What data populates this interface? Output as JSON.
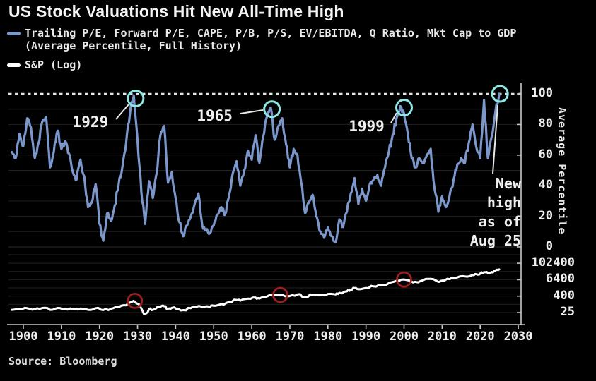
{
  "title": "US Stock Valuations Hit New All-Time High",
  "legend": {
    "series1_line1": "Trailing P/E, Forward P/E, CAPE, P/B, P/S, EV/EBITDA, Q Ratio, Mkt Cap to GDP",
    "series1_line2": "(Average Percentile, Full History)",
    "series2_label": "S&P (Log)"
  },
  "source": "Source: Bloomberg",
  "colors": {
    "background": "#000000",
    "text": "#e9e9e9",
    "valuation_line": "#7b97cc",
    "sp_line": "#ffffff",
    "peak_circle": "#8ee9e6",
    "sp_highlight_circle": "#9b2020",
    "dashed_line": "#e5e5e5",
    "gridline": "#1f1f1f",
    "axis": "#c8c8c8",
    "pointer_line": "#e8e8e8"
  },
  "new_high_note": {
    "line1": "New",
    "line2": "high",
    "line3": "as of",
    "line4": "Aug 25"
  },
  "chart_data": {
    "type": "line",
    "title": "US Stock Valuations Hit New All-Time High",
    "xlabel": "",
    "x_ticks": [
      1900,
      1910,
      1920,
      1930,
      1940,
      1950,
      1960,
      1970,
      1980,
      1990,
      2000,
      2010,
      2020,
      2030
    ],
    "x_range": [
      1897,
      2030
    ],
    "upper_panel": {
      "ylabel": "Average Percentile",
      "y_ticks": [
        100,
        80,
        60,
        40,
        20,
        0
      ],
      "ylim": [
        0,
        100
      ],
      "grid": "horizontal-faint",
      "reference_line": {
        "value": 100,
        "style": "dashed"
      },
      "series_name": "Trailing P/E, Forward P/E, CAPE, P/B, P/S, EV/EBITDA, Q Ratio, Mkt Cap to GDP (Average Percentile, Full History)",
      "points": [
        [
          1897,
          62
        ],
        [
          1898,
          58
        ],
        [
          1899,
          74
        ],
        [
          1900,
          66
        ],
        [
          1901,
          84
        ],
        [
          1902,
          78
        ],
        [
          1903,
          58
        ],
        [
          1904,
          68
        ],
        [
          1905,
          82
        ],
        [
          1906,
          85
        ],
        [
          1907,
          52
        ],
        [
          1908,
          62
        ],
        [
          1909,
          76
        ],
        [
          1910,
          64
        ],
        [
          1911,
          69
        ],
        [
          1912,
          61
        ],
        [
          1913,
          49
        ],
        [
          1914,
          44
        ],
        [
          1915,
          57
        ],
        [
          1916,
          46
        ],
        [
          1917,
          26
        ],
        [
          1918,
          29
        ],
        [
          1919,
          41
        ],
        [
          1920,
          15
        ],
        [
          1921,
          4
        ],
        [
          1922,
          22
        ],
        [
          1923,
          17
        ],
        [
          1924,
          27
        ],
        [
          1925,
          40
        ],
        [
          1926,
          52
        ],
        [
          1927,
          68
        ],
        [
          1928,
          87
        ],
        [
          1929,
          99
        ],
        [
          1930,
          70
        ],
        [
          1931,
          36
        ],
        [
          1932,
          15
        ],
        [
          1933,
          43
        ],
        [
          1934,
          32
        ],
        [
          1935,
          48
        ],
        [
          1936,
          73
        ],
        [
          1937,
          79
        ],
        [
          1938,
          42
        ],
        [
          1939,
          49
        ],
        [
          1940,
          32
        ],
        [
          1941,
          16
        ],
        [
          1942,
          7
        ],
        [
          1943,
          14
        ],
        [
          1944,
          20
        ],
        [
          1945,
          28
        ],
        [
          1946,
          35
        ],
        [
          1947,
          14
        ],
        [
          1948,
          11
        ],
        [
          1949,
          9
        ],
        [
          1950,
          14
        ],
        [
          1951,
          21
        ],
        [
          1952,
          26
        ],
        [
          1953,
          21
        ],
        [
          1954,
          33
        ],
        [
          1955,
          48
        ],
        [
          1956,
          56
        ],
        [
          1957,
          40
        ],
        [
          1958,
          50
        ],
        [
          1959,
          63
        ],
        [
          1960,
          57
        ],
        [
          1961,
          73
        ],
        [
          1962,
          55
        ],
        [
          1963,
          72
        ],
        [
          1964,
          85
        ],
        [
          1965,
          91
        ],
        [
          1966,
          70
        ],
        [
          1967,
          79
        ],
        [
          1968,
          84
        ],
        [
          1969,
          67
        ],
        [
          1970,
          52
        ],
        [
          1971,
          64
        ],
        [
          1972,
          60
        ],
        [
          1973,
          42
        ],
        [
          1974,
          22
        ],
        [
          1975,
          29
        ],
        [
          1976,
          34
        ],
        [
          1977,
          20
        ],
        [
          1978,
          10
        ],
        [
          1979,
          6
        ],
        [
          1980,
          13
        ],
        [
          1981,
          7
        ],
        [
          1982,
          3
        ],
        [
          1983,
          18
        ],
        [
          1984,
          13
        ],
        [
          1985,
          23
        ],
        [
          1986,
          35
        ],
        [
          1987,
          45
        ],
        [
          1988,
          28
        ],
        [
          1989,
          38
        ],
        [
          1990,
          30
        ],
        [
          1991,
          41
        ],
        [
          1992,
          44
        ],
        [
          1993,
          47
        ],
        [
          1994,
          40
        ],
        [
          1995,
          52
        ],
        [
          1996,
          62
        ],
        [
          1997,
          73
        ],
        [
          1998,
          84
        ],
        [
          1999,
          92
        ],
        [
          2000,
          87
        ],
        [
          2001,
          74
        ],
        [
          2002,
          58
        ],
        [
          2003,
          52
        ],
        [
          2004,
          58
        ],
        [
          2005,
          55
        ],
        [
          2006,
          60
        ],
        [
          2007,
          64
        ],
        [
          2008,
          38
        ],
        [
          2009,
          23
        ],
        [
          2010,
          33
        ],
        [
          2011,
          26
        ],
        [
          2012,
          34
        ],
        [
          2013,
          44
        ],
        [
          2014,
          54
        ],
        [
          2015,
          58
        ],
        [
          2016,
          55
        ],
        [
          2017,
          68
        ],
        [
          2018,
          80
        ],
        [
          2019,
          65
        ],
        [
          2020,
          58
        ],
        [
          2021,
          96
        ],
        [
          2022,
          58
        ],
        [
          2023,
          72
        ],
        [
          2024,
          88
        ],
        [
          2025,
          100
        ]
      ],
      "annotations": [
        {
          "label": "1929",
          "year": 1929.5,
          "value": 97,
          "label_offset": [
            -64,
            33
          ],
          "pointer": [
            [
              164,
              169
            ],
            [
              182,
              148
            ]
          ]
        },
        {
          "label": "1965",
          "year": 1965.3,
          "value": 90,
          "label_offset": [
            -81,
            9
          ],
          "pointer": [
            [
              340,
              161
            ],
            [
              372,
              156
            ]
          ]
        },
        {
          "label": "1999",
          "year": 2000.0,
          "value": 91,
          "label_offset": [
            -53,
            26
          ],
          "pointer": [
            [
              553,
              174
            ],
            [
              561,
              160
            ]
          ]
        },
        {
          "label": "New high as of Aug 25",
          "year": 2025.2,
          "value": 100,
          "pointer": [
            [
              704,
              149
            ],
            [
              697,
              246
            ]
          ]
        }
      ]
    },
    "lower_panel": {
      "ylabel": "",
      "scale": "log",
      "y_ticks": [
        102400,
        6400,
        400,
        25
      ],
      "series_name": "S&P (Log)",
      "points": [
        [
          1897,
          40
        ],
        [
          1899,
          46
        ],
        [
          1901,
          52
        ],
        [
          1903,
          44
        ],
        [
          1905,
          54
        ],
        [
          1907,
          40
        ],
        [
          1909,
          54
        ],
        [
          1911,
          48
        ],
        [
          1913,
          44
        ],
        [
          1915,
          50
        ],
        [
          1917,
          40
        ],
        [
          1919,
          52
        ],
        [
          1921,
          38
        ],
        [
          1923,
          48
        ],
        [
          1925,
          62
        ],
        [
          1927,
          85
        ],
        [
          1929,
          180
        ],
        [
          1930,
          110
        ],
        [
          1931,
          50
        ],
        [
          1932,
          19
        ],
        [
          1933,
          45
        ],
        [
          1934,
          40
        ],
        [
          1936,
          66
        ],
        [
          1937,
          72
        ],
        [
          1938,
          48
        ],
        [
          1939,
          55
        ],
        [
          1941,
          42
        ],
        [
          1942,
          38
        ],
        [
          1944,
          52
        ],
        [
          1946,
          75
        ],
        [
          1947,
          62
        ],
        [
          1949,
          63
        ],
        [
          1950,
          78
        ],
        [
          1952,
          105
        ],
        [
          1954,
          145
        ],
        [
          1956,
          210
        ],
        [
          1957,
          185
        ],
        [
          1959,
          260
        ],
        [
          1961,
          310
        ],
        [
          1962,
          265
        ],
        [
          1964,
          380
        ],
        [
          1966,
          470
        ],
        [
          1968,
          500
        ],
        [
          1970,
          410
        ],
        [
          1972,
          530
        ],
        [
          1974,
          340
        ],
        [
          1976,
          500
        ],
        [
          1978,
          460
        ],
        [
          1980,
          580
        ],
        [
          1982,
          530
        ],
        [
          1983,
          700
        ],
        [
          1985,
          900
        ],
        [
          1986,
          1150
        ],
        [
          1987,
          1550
        ],
        [
          1988,
          1280
        ],
        [
          1990,
          1600
        ],
        [
          1992,
          2100
        ],
        [
          1994,
          2400
        ],
        [
          1996,
          3600
        ],
        [
          1998,
          5200
        ],
        [
          2000,
          6600
        ],
        [
          2002,
          4700
        ],
        [
          2003,
          4500
        ],
        [
          2005,
          5800
        ],
        [
          2007,
          7300
        ],
        [
          2009,
          4400
        ],
        [
          2010,
          5500
        ],
        [
          2012,
          7000
        ],
        [
          2014,
          9500
        ],
        [
          2016,
          11000
        ],
        [
          2018,
          14000
        ],
        [
          2019,
          16000
        ],
        [
          2020,
          17500
        ],
        [
          2021,
          23000
        ],
        [
          2022,
          19500
        ],
        [
          2023,
          23500
        ],
        [
          2024,
          29000
        ],
        [
          2025,
          36000
        ]
      ],
      "highlights": [
        {
          "year": 1929.3,
          "value": 180
        },
        {
          "year": 1967.5,
          "value": 485
        },
        {
          "year": 2000.0,
          "value": 6600
        }
      ]
    }
  }
}
